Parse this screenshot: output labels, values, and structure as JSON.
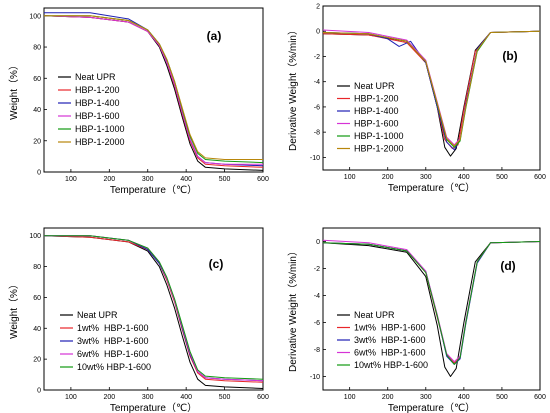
{
  "chart_data": [
    {
      "type": "line",
      "panel_label": "(a)",
      "xlabel": "Temperature（℃）",
      "ylabel": "Weight（%）",
      "xlim": [
        30,
        600
      ],
      "ylim": [
        0,
        105
      ],
      "x_ticks": [
        100,
        200,
        300,
        400,
        500,
        600
      ],
      "y_ticks": [
        0,
        20,
        40,
        60,
        80,
        100
      ],
      "legend_position": "center-left",
      "series": [
        {
          "name": "Neat UPR",
          "color": "#000000",
          "x": [
            30,
            150,
            250,
            300,
            330,
            350,
            370,
            390,
            410,
            430,
            450,
            500,
            600
          ],
          "y": [
            100,
            99,
            96,
            90,
            80,
            68,
            53,
            35,
            18,
            7,
            3,
            2,
            1
          ]
        },
        {
          "name": "HBP-1-200",
          "color": "#e8262a",
          "x": [
            30,
            150,
            250,
            300,
            330,
            350,
            370,
            390,
            410,
            430,
            450,
            500,
            600
          ],
          "y": [
            100,
            99,
            96,
            90,
            81,
            70,
            55,
            37,
            20,
            9,
            5,
            4,
            3
          ]
        },
        {
          "name": "HBP-1-400",
          "color": "#1f1fb4",
          "x": [
            30,
            150,
            250,
            300,
            330,
            350,
            370,
            390,
            410,
            430,
            450,
            500,
            600
          ],
          "y": [
            102,
            102,
            98,
            91,
            82,
            71,
            56,
            38,
            21,
            10,
            6,
            5,
            4
          ]
        },
        {
          "name": "HBP-1-600",
          "color": "#d633d6",
          "x": [
            30,
            150,
            250,
            300,
            330,
            350,
            370,
            390,
            410,
            430,
            450,
            500,
            600
          ],
          "y": [
            100,
            99,
            96,
            90,
            81,
            70,
            56,
            38,
            21,
            10,
            6,
            5,
            5
          ]
        },
        {
          "name": "HBP-1-1000",
          "color": "#119a11",
          "x": [
            30,
            150,
            250,
            300,
            330,
            350,
            370,
            390,
            410,
            430,
            450,
            500,
            600
          ],
          "y": [
            100,
            100,
            97,
            91,
            82,
            72,
            58,
            40,
            23,
            12,
            8,
            7,
            6
          ]
        },
        {
          "name": "HBP-1-2000",
          "color": "#b8860b",
          "x": [
            30,
            150,
            250,
            300,
            330,
            350,
            370,
            390,
            410,
            430,
            450,
            500,
            600
          ],
          "y": [
            100,
            100,
            97,
            91,
            82,
            72,
            58,
            41,
            24,
            13,
            9,
            8,
            8
          ]
        }
      ]
    },
    {
      "type": "line",
      "panel_label": "(b)",
      "xlabel": "Temperature（℃）",
      "ylabel": "Derivative Weight（%/min）",
      "xlim": [
        30,
        600
      ],
      "ylim": [
        -11,
        2
      ],
      "x_ticks": [
        100,
        200,
        300,
        400,
        500,
        600
      ],
      "y_ticks": [
        2,
        0,
        -2,
        -4,
        -6,
        -8,
        -10
      ],
      "legend_position": "center-left",
      "series": [
        {
          "name": "Neat UPR",
          "color": "#000000",
          "x": [
            30,
            150,
            250,
            300,
            330,
            350,
            365,
            380,
            400,
            430,
            470,
            600
          ],
          "y": [
            -0.2,
            -0.3,
            -0.8,
            -2.5,
            -6,
            -9.2,
            -9.9,
            -9.3,
            -6,
            -1.5,
            -0.1,
            0
          ]
        },
        {
          "name": "HBP-1-200",
          "color": "#e8262a",
          "x": [
            30,
            150,
            250,
            300,
            330,
            350,
            370,
            385,
            400,
            430,
            470,
            600
          ],
          "y": [
            -0.2,
            -0.3,
            -0.9,
            -2.5,
            -6,
            -8.6,
            -9.3,
            -9,
            -6.2,
            -1.6,
            -0.1,
            0
          ]
        },
        {
          "name": "HBP-1-400",
          "color": "#1f1fb4",
          "x": [
            30,
            150,
            200,
            230,
            260,
            300,
            330,
            355,
            375,
            390,
            405,
            435,
            470,
            600
          ],
          "y": [
            -0.1,
            -0.2,
            -0.6,
            -1.2,
            -0.8,
            -2.5,
            -6,
            -8.8,
            -9.4,
            -8.6,
            -5.8,
            -1.4,
            -0.1,
            0
          ]
        },
        {
          "name": "HBP-1-600",
          "color": "#d633d6",
          "x": [
            30,
            150,
            250,
            300,
            330,
            355,
            375,
            390,
            405,
            435,
            470,
            600
          ],
          "y": [
            0.1,
            -0.1,
            -0.7,
            -2.3,
            -5.6,
            -8.4,
            -9,
            -8.5,
            -6,
            -1.5,
            -0.1,
            0
          ]
        },
        {
          "name": "HBP-1-1000",
          "color": "#119a11",
          "x": [
            30,
            150,
            250,
            300,
            330,
            355,
            375,
            390,
            405,
            435,
            470,
            600
          ],
          "y": [
            -0.1,
            -0.2,
            -0.8,
            -2.4,
            -5.8,
            -8.6,
            -9.2,
            -8.7,
            -6.1,
            -1.6,
            -0.1,
            0
          ]
        },
        {
          "name": "HBP-1-2000",
          "color": "#b8860b",
          "x": [
            30,
            150,
            250,
            300,
            330,
            355,
            375,
            390,
            405,
            435,
            470,
            600
          ],
          "y": [
            -0.1,
            -0.2,
            -0.8,
            -2.4,
            -5.7,
            -8.5,
            -9.1,
            -8.6,
            -6,
            -1.5,
            -0.1,
            0
          ]
        }
      ]
    },
    {
      "type": "line",
      "panel_label": "(c)",
      "xlabel": "Temperature（℃）",
      "ylabel": "Weight（%）",
      "xlim": [
        30,
        600
      ],
      "ylim": [
        0,
        105
      ],
      "x_ticks": [
        100,
        200,
        300,
        400,
        500,
        600
      ],
      "y_ticks": [
        0,
        20,
        40,
        60,
        80,
        100
      ],
      "legend_position": "bottom-left",
      "series": [
        {
          "name": "Neat UPR",
          "color": "#000000",
          "x": [
            30,
            150,
            250,
            300,
            330,
            350,
            370,
            390,
            410,
            430,
            450,
            500,
            600
          ],
          "y": [
            100,
            99,
            96,
            90,
            80,
            68,
            53,
            35,
            18,
            7,
            3,
            2,
            1
          ]
        },
        {
          "name": "1wt%  HBP-1-600",
          "color": "#e8262a",
          "x": [
            30,
            150,
            250,
            300,
            330,
            350,
            370,
            390,
            410,
            430,
            450,
            500,
            600
          ],
          "y": [
            100,
            99,
            96,
            91,
            82,
            71,
            57,
            39,
            22,
            11,
            7,
            6,
            5
          ]
        },
        {
          "name": "3wt%  HBP-1-600",
          "color": "#1f1fb4",
          "x": [
            30,
            150,
            250,
            300,
            330,
            350,
            370,
            390,
            410,
            430,
            450,
            500,
            600
          ],
          "y": [
            100,
            100,
            97,
            91,
            82,
            72,
            58,
            40,
            23,
            12,
            8,
            7,
            6
          ]
        },
        {
          "name": "6wt%  HBP-1-600",
          "color": "#d633d6",
          "x": [
            30,
            150,
            250,
            300,
            330,
            350,
            370,
            390,
            410,
            430,
            450,
            500,
            600
          ],
          "y": [
            100,
            100,
            97,
            92,
            83,
            72,
            58,
            41,
            24,
            12,
            8,
            7,
            6
          ]
        },
        {
          "name": "10wt% HBP-1-600",
          "color": "#119a11",
          "x": [
            30,
            150,
            250,
            300,
            330,
            350,
            370,
            390,
            410,
            430,
            450,
            500,
            600
          ],
          "y": [
            100,
            100,
            97,
            92,
            83,
            73,
            59,
            42,
            25,
            13,
            9,
            8,
            7
          ]
        }
      ]
    },
    {
      "type": "line",
      "panel_label": "(d)",
      "xlabel": "Temperature（℃）",
      "ylabel": "Derivative Weight（%/min）",
      "xlim": [
        30,
        600
      ],
      "ylim": [
        -11,
        1
      ],
      "x_ticks": [
        100,
        200,
        300,
        400,
        500,
        600
      ],
      "y_ticks": [
        0,
        -2,
        -4,
        -6,
        -8,
        -10
      ],
      "legend_position": "bottom-left",
      "series": [
        {
          "name": "Neat UPR",
          "color": "#000000",
          "x": [
            30,
            150,
            250,
            300,
            330,
            350,
            365,
            380,
            400,
            430,
            470,
            600
          ],
          "y": [
            -0.1,
            -0.3,
            -0.8,
            -2.6,
            -6.2,
            -9.3,
            -10,
            -9.4,
            -6,
            -1.5,
            -0.1,
            0
          ]
        },
        {
          "name": "1wt%  HBP-1-600",
          "color": "#e8262a",
          "x": [
            30,
            150,
            250,
            300,
            330,
            355,
            375,
            390,
            405,
            435,
            470,
            600
          ],
          "y": [
            -0.1,
            -0.2,
            -0.7,
            -2.3,
            -5.6,
            -8.4,
            -9,
            -8.6,
            -6,
            -1.5,
            -0.1,
            0
          ]
        },
        {
          "name": "3wt%  HBP-1-600",
          "color": "#1f1fb4",
          "x": [
            30,
            150,
            250,
            300,
            330,
            355,
            375,
            390,
            405,
            435,
            470,
            600
          ],
          "y": [
            -0.1,
            -0.2,
            -0.7,
            -2.2,
            -5.5,
            -8.5,
            -9.1,
            -8.7,
            -6.1,
            -1.6,
            -0.1,
            0
          ]
        },
        {
          "name": "6wt%  HBP-1-600",
          "color": "#d633d6",
          "x": [
            30,
            150,
            250,
            300,
            330,
            355,
            375,
            390,
            405,
            435,
            470,
            600
          ],
          "y": [
            0.1,
            -0.1,
            -0.6,
            -2.2,
            -5.4,
            -8.3,
            -8.9,
            -8.5,
            -5.9,
            -1.5,
            -0.1,
            0
          ]
        },
        {
          "name": "10wt% HBP-1-600",
          "color": "#119a11",
          "x": [
            30,
            150,
            250,
            300,
            330,
            355,
            375,
            390,
            405,
            435,
            470,
            600
          ],
          "y": [
            -0.1,
            -0.2,
            -0.7,
            -2.3,
            -5.5,
            -8.4,
            -9.1,
            -8.6,
            -6,
            -1.5,
            -0.1,
            0
          ]
        }
      ]
    }
  ]
}
